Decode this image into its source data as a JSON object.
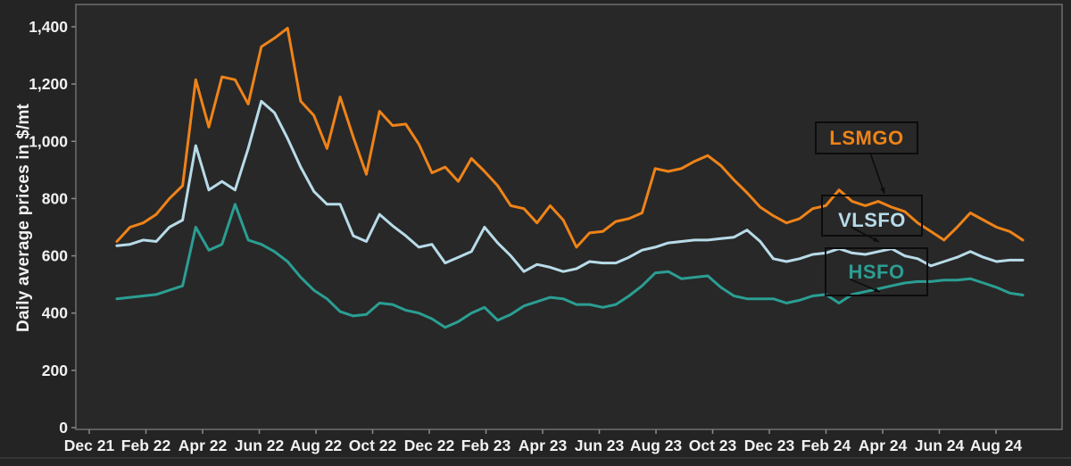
{
  "figure": {
    "ylabel": "Daily average prices in $/mt",
    "colors": {
      "background": "#242424",
      "plot_background": "#282828",
      "spine": "#6e6e6e",
      "tick": "#8a8a8a",
      "tick_label": "#f2f2f2",
      "callout_border": "#0c0c0c",
      "arrow": "#0c0c0c",
      "bottom_rule": "#474747"
    }
  },
  "chart_data": {
    "type": "line",
    "title": "",
    "xlabel": "",
    "ylabel": "Daily average prices in $/mt",
    "ylim": [
      0,
      1400
    ],
    "ytick_step": 200,
    "ytick_labels": [
      "0",
      "200",
      "400",
      "600",
      "800",
      "1,000",
      "1,200",
      "1,400"
    ],
    "x_tick_labels": [
      "Dec 21",
      "Feb 22",
      "Apr 22",
      "Jun 22",
      "Aug 22",
      "Oct 22",
      "Dec 22",
      "Feb 23",
      "Apr 23",
      "Jun 23",
      "Aug 23",
      "Oct 23",
      "Dec 23",
      "Feb 24",
      "Apr 24",
      "Jun 24",
      "Aug 24"
    ],
    "grid": false,
    "legend_position": "callout-boxes-on-chart",
    "series": [
      {
        "name": "LSMGO",
        "color": "#ef8318",
        "values": [
          650,
          700,
          715,
          745,
          800,
          845,
          1215,
          1050,
          1225,
          1215,
          1130,
          1330,
          1360,
          1395,
          1140,
          1090,
          975,
          1155,
          1015,
          885,
          1105,
          1055,
          1060,
          990,
          890,
          910,
          860,
          940,
          895,
          845,
          775,
          765,
          715,
          775,
          725,
          630,
          680,
          685,
          720,
          730,
          750,
          905,
          895,
          905,
          930,
          950,
          915,
          865,
          820,
          770,
          740,
          715,
          730,
          765,
          775,
          830,
          790,
          775,
          790,
          770,
          755,
          715,
          685,
          655,
          700,
          750,
          725,
          700,
          685,
          655
        ]
      },
      {
        "name": "VLSFO",
        "color": "#b8dbe8",
        "values": [
          635,
          640,
          655,
          650,
          700,
          725,
          985,
          830,
          860,
          830,
          975,
          1140,
          1100,
          1010,
          910,
          825,
          780,
          780,
          670,
          650,
          745,
          705,
          670,
          630,
          640,
          575,
          595,
          615,
          700,
          645,
          600,
          545,
          570,
          560,
          545,
          555,
          580,
          575,
          575,
          595,
          620,
          630,
          645,
          650,
          655,
          655,
          660,
          665,
          690,
          650,
          590,
          580,
          590,
          605,
          610,
          625,
          610,
          605,
          615,
          625,
          600,
          590,
          565,
          580,
          595,
          615,
          595,
          580,
          585,
          585
        ]
      },
      {
        "name": "HSFO",
        "color": "#2b9e93",
        "values": [
          450,
          455,
          460,
          465,
          480,
          495,
          700,
          620,
          640,
          780,
          655,
          640,
          615,
          580,
          525,
          480,
          450,
          405,
          390,
          395,
          435,
          430,
          410,
          400,
          380,
          350,
          370,
          400,
          420,
          375,
          395,
          425,
          440,
          455,
          450,
          430,
          430,
          420,
          430,
          460,
          495,
          540,
          545,
          520,
          525,
          530,
          490,
          460,
          450,
          450,
          450,
          435,
          445,
          460,
          465,
          435,
          465,
          475,
          485,
          495,
          505,
          510,
          510,
          515,
          515,
          520,
          505,
          490,
          470,
          463
        ]
      }
    ]
  },
  "callouts": [
    {
      "label": "LSMGO"
    },
    {
      "label": "VLSFO"
    },
    {
      "label": "HSFO"
    }
  ]
}
